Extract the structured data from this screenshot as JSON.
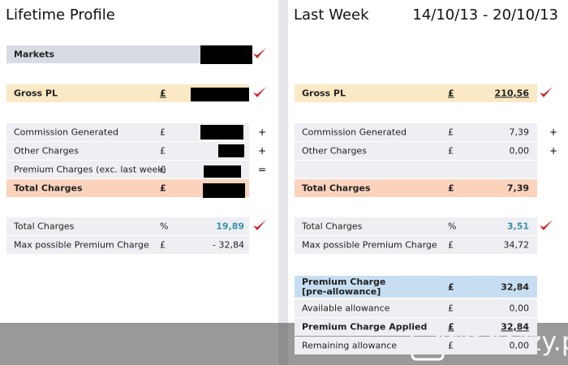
{
  "left": {
    "title": "Lifetime Profile",
    "rows": [
      {
        "label": "Markets"
      },
      {
        "label": "Gross PL",
        "currency": "£"
      },
      {
        "label": "Commission Generated",
        "currency": "£",
        "operator": "+"
      },
      {
        "label": "Other Charges",
        "currency": "£",
        "operator": "+"
      },
      {
        "label": "Premium Charges (exc. last week)",
        "currency": "£",
        "operator": "="
      },
      {
        "label": "Total Charges",
        "currency": "£"
      },
      {
        "label": "Total Charges",
        "currency": "%",
        "value": "19,89"
      },
      {
        "label": "Max possible Premium Charge",
        "currency": "£",
        "value": "- 32,84"
      }
    ]
  },
  "right": {
    "title": "Last Week",
    "date_range": "14/10/13 - 20/10/13",
    "rows": [
      {
        "label": "Gross PL",
        "currency": "£",
        "value": "210,56"
      },
      {
        "label": "Commission Generated",
        "currency": "£",
        "value": "7,39",
        "operator": "+"
      },
      {
        "label": "Other Charges",
        "currency": "£",
        "value": "0,00",
        "operator": "+"
      },
      {
        "label": "Total Charges",
        "currency": "£",
        "value": "7,39"
      },
      {
        "label": "Total Charges",
        "currency": "%",
        "value": "3,51"
      },
      {
        "label": "Max possible Premium Charge",
        "currency": "£",
        "value": "34,72"
      },
      {
        "label": "Premium Charge [pre-allowance]",
        "currency": "£",
        "value": "32,84"
      },
      {
        "label": "Available allowance",
        "currency": "£",
        "value": "0,00"
      },
      {
        "label": "Premium Charge Applied",
        "currency": "£",
        "value": "32,84"
      },
      {
        "label": "Remaining allowance",
        "currency": "£",
        "value": "0,00"
      }
    ]
  },
  "watermark": "traderzy.pl"
}
